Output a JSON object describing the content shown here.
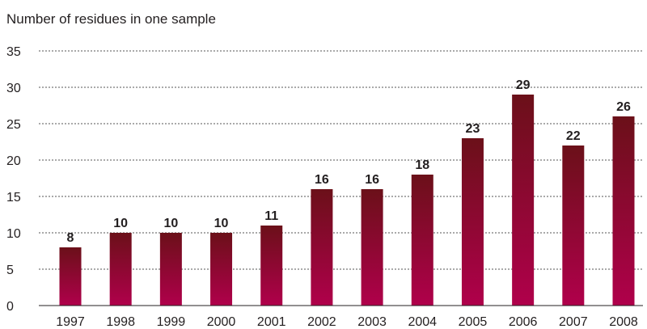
{
  "chart_data": {
    "type": "bar",
    "title": "",
    "xlabel": "",
    "ylabel": "Number of residues in one sample",
    "categories": [
      "1997",
      "1998",
      "1999",
      "2000",
      "2001",
      "2002",
      "2003",
      "2004",
      "2005",
      "2006",
      "2007",
      "2008"
    ],
    "values": [
      8,
      10,
      10,
      10,
      11,
      16,
      16,
      18,
      23,
      29,
      22,
      26
    ],
    "ylim": [
      0,
      35
    ],
    "yticks": [
      0,
      5,
      10,
      15,
      20,
      25,
      30,
      35
    ],
    "grid": true,
    "colors": {
      "bar_top": "#6b1019",
      "bar_bottom": "#b0004b",
      "grid": "#555555",
      "text": "#231f20"
    }
  }
}
